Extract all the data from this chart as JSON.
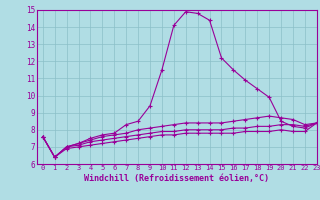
{
  "xlabel": "Windchill (Refroidissement éolien,°C)",
  "xlim": [
    -0.5,
    23
  ],
  "ylim": [
    6,
    15
  ],
  "xticks": [
    0,
    1,
    2,
    3,
    4,
    5,
    6,
    7,
    8,
    9,
    10,
    11,
    12,
    13,
    14,
    15,
    16,
    17,
    18,
    19,
    20,
    21,
    22,
    23
  ],
  "yticks": [
    6,
    7,
    8,
    9,
    10,
    11,
    12,
    13,
    14,
    15
  ],
  "bg_color": "#b0dde4",
  "line_color": "#990099",
  "grid_color": "#8bbfc8",
  "series": [
    [
      7.6,
      6.4,
      7.0,
      7.2,
      7.5,
      7.7,
      7.8,
      8.3,
      8.5,
      9.4,
      11.5,
      14.1,
      14.9,
      14.8,
      14.4,
      12.2,
      11.5,
      10.9,
      10.4,
      9.9,
      8.5,
      8.2,
      8.1,
      8.4
    ],
    [
      7.6,
      6.4,
      7.0,
      7.2,
      7.4,
      7.6,
      7.7,
      7.8,
      8.0,
      8.1,
      8.2,
      8.3,
      8.4,
      8.4,
      8.4,
      8.4,
      8.5,
      8.6,
      8.7,
      8.8,
      8.7,
      8.6,
      8.3,
      8.4
    ],
    [
      7.6,
      6.4,
      7.0,
      7.1,
      7.3,
      7.4,
      7.5,
      7.6,
      7.7,
      7.8,
      7.9,
      7.9,
      8.0,
      8.0,
      8.0,
      8.0,
      8.1,
      8.1,
      8.2,
      8.2,
      8.3,
      8.3,
      8.2,
      8.4
    ],
    [
      7.6,
      6.4,
      6.9,
      7.0,
      7.1,
      7.2,
      7.3,
      7.4,
      7.5,
      7.6,
      7.7,
      7.7,
      7.8,
      7.8,
      7.8,
      7.8,
      7.8,
      7.9,
      7.9,
      7.9,
      8.0,
      7.9,
      7.9,
      8.4
    ]
  ]
}
